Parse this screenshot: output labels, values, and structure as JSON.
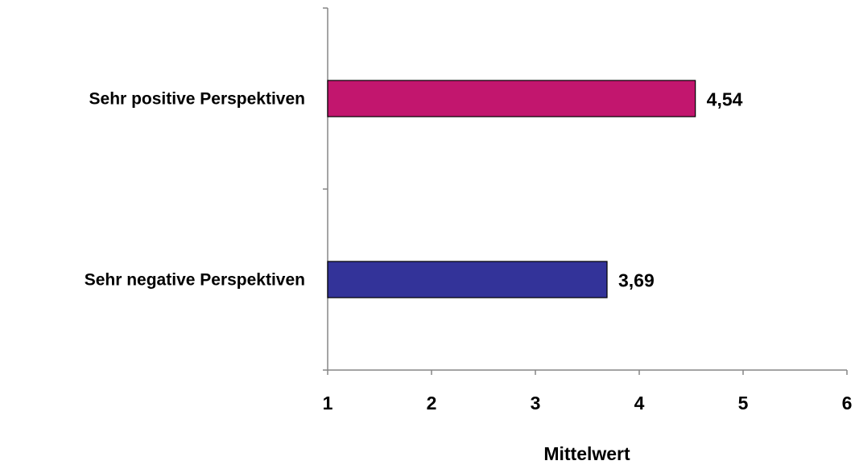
{
  "chart_data": {
    "type": "bar",
    "orientation": "horizontal",
    "categories": [
      "Sehr positive Perspektiven",
      "Sehr negative Perspektiven"
    ],
    "values": [
      4.54,
      3.69
    ],
    "data_labels": [
      "4,54",
      "3,69"
    ],
    "colors": [
      "#C2166E",
      "#333399"
    ],
    "xlabel": "Mittelwert",
    "ylabel": "",
    "xlim": [
      1,
      6
    ],
    "xticks": [
      1,
      2,
      3,
      4,
      5,
      6
    ],
    "xtick_labels": [
      "1",
      "2",
      "3",
      "4",
      "5",
      "6"
    ],
    "grid": false,
    "legend": "none"
  }
}
